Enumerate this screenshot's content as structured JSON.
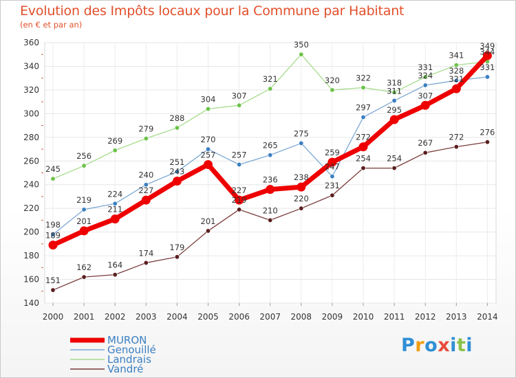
{
  "header": {
    "title": "Evolution des Impôts locaux pour la Commune par Habitant",
    "subtitle": "(en € et par an)"
  },
  "brand": {
    "name": "Proxiti",
    "letters": [
      "P",
      "r",
      "o",
      "x",
      "i",
      "t",
      "i"
    ],
    "colors": [
      "#2f8fd5",
      "#f39c12",
      "#2f8fd5",
      "#e74c3c",
      "#2f8fd5",
      "#8bc34a",
      "#2f8fd5"
    ]
  },
  "chart_data": {
    "type": "line",
    "title": "Evolution des Impôts locaux pour la Commune par Habitant",
    "subtitle": "(en € et par an)",
    "x": [
      2000,
      2001,
      2002,
      2003,
      2004,
      2005,
      2006,
      2007,
      2008,
      2009,
      2010,
      2011,
      2012,
      2013,
      2014
    ],
    "x_tick_labels": [
      "2000",
      "2001",
      "2002",
      "2003",
      "2004",
      "2005",
      "2006",
      "2007",
      "2008",
      "2009",
      "2010",
      "2011",
      "2012",
      "2013",
      "2014"
    ],
    "ylim": [
      140,
      360
    ],
    "y_ticks": [
      140,
      160,
      180,
      200,
      220,
      240,
      260,
      280,
      300,
      320,
      340,
      360
    ],
    "y_tick_labels": [
      "140",
      "160",
      "180",
      "200",
      "220",
      "240",
      "260",
      "280",
      "300",
      "320",
      "340",
      "360"
    ],
    "grid": true,
    "legend_position": "bottom-left",
    "series": [
      {
        "name": "MURON",
        "color": "#ee0000",
        "marker_color": "#ee0000",
        "emphasis": true,
        "values": [
          189,
          201,
          211,
          227,
          243,
          257,
          227,
          236,
          238,
          259,
          272,
          295,
          307,
          321,
          349
        ],
        "labels": [
          "189",
          "201",
          "211",
          "227",
          "243",
          "257",
          "227",
          "236",
          "238",
          "259",
          "272",
          "295",
          "307",
          "321",
          "349"
        ]
      },
      {
        "name": "Genouillé",
        "color": "#7ba7d3",
        "marker_color": "#3a7fc1",
        "emphasis": false,
        "values": [
          198,
          219,
          224,
          240,
          251,
          270,
          257,
          265,
          275,
          247,
          297,
          311,
          324,
          328,
          331
        ],
        "labels": [
          "198",
          "219",
          "224",
          "240",
          "251",
          "270",
          "257",
          "265",
          "275",
          "247",
          "297",
          "311",
          "324",
          "328",
          "331"
        ]
      },
      {
        "name": "Landrais",
        "color": "#a6dc8c",
        "marker_color": "#6cc24a",
        "emphasis": false,
        "values": [
          245,
          256,
          269,
          279,
          288,
          304,
          307,
          321,
          350,
          320,
          322,
          318,
          331,
          341,
          344
        ],
        "labels": [
          "245",
          "256",
          "269",
          "279",
          "288",
          "304",
          "307",
          "321",
          "350",
          "320",
          "322",
          "318",
          "331",
          "341",
          "344"
        ]
      },
      {
        "name": "Vandré",
        "color": "#7a3a3a",
        "marker_color": "#5a1e1e",
        "emphasis": false,
        "values": [
          151,
          162,
          164,
          174,
          179,
          201,
          219,
          210,
          220,
          231,
          254,
          254,
          267,
          272,
          276
        ],
        "labels": [
          "151",
          "162",
          "164",
          "174",
          "179",
          "201",
          "219",
          "210",
          "220",
          "231",
          "254",
          "254",
          "267",
          "272",
          "276"
        ]
      }
    ]
  }
}
